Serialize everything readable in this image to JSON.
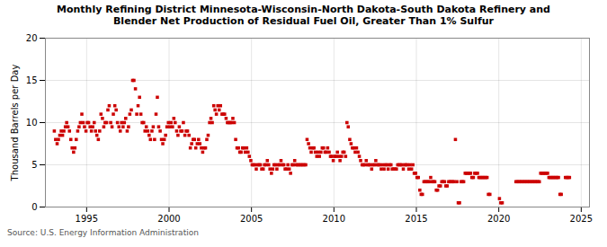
{
  "chart_data": {
    "type": "scatter",
    "title": "Monthly Refining District Minnesota-Wisconsin-North Dakota-South Dakota Refinery and\nBlender Net Production of Residual Fuel Oil, Greater Than 1% Sulfur",
    "ylabel": "Thousand Barrels per Day",
    "source": "Source: U.S. Energy Information Administration",
    "color": "#cc0000",
    "marker": "square",
    "grid": true,
    "xlim": [
      1992.5,
      2025.5
    ],
    "ylim": [
      0,
      20
    ],
    "xticks": [
      1995,
      2000,
      2005,
      2010,
      2015,
      2020,
      2025
    ],
    "yticks": [
      0,
      5,
      10,
      15,
      20
    ],
    "x": [
      1993.04,
      1993.12,
      1993.21,
      1993.29,
      1993.37,
      1993.46,
      1993.54,
      1993.62,
      1993.71,
      1993.79,
      1993.87,
      1993.96,
      1994.04,
      1994.12,
      1994.21,
      1994.29,
      1994.37,
      1994.46,
      1994.54,
      1994.62,
      1994.71,
      1994.79,
      1994.87,
      1994.96,
      1995.04,
      1995.12,
      1995.21,
      1995.29,
      1995.37,
      1995.46,
      1995.54,
      1995.62,
      1995.71,
      1995.79,
      1995.87,
      1995.96,
      1996.04,
      1996.12,
      1996.21,
      1996.29,
      1996.37,
      1996.46,
      1996.54,
      1996.62,
      1996.71,
      1996.79,
      1996.87,
      1996.96,
      1997.04,
      1997.12,
      1997.21,
      1997.29,
      1997.37,
      1997.46,
      1997.54,
      1997.62,
      1997.71,
      1997.79,
      1997.87,
      1997.96,
      1998.04,
      1998.12,
      1998.21,
      1998.29,
      1998.37,
      1998.46,
      1998.54,
      1998.62,
      1998.71,
      1998.79,
      1998.87,
      1998.96,
      1999.04,
      1999.12,
      1999.21,
      1999.29,
      1999.37,
      1999.46,
      1999.54,
      1999.62,
      1999.71,
      1999.79,
      1999.87,
      1999.96,
      2000.04,
      2000.12,
      2000.21,
      2000.29,
      2000.37,
      2000.46,
      2000.54,
      2000.62,
      2000.71,
      2000.79,
      2000.87,
      2000.96,
      2001.04,
      2001.12,
      2001.21,
      2001.29,
      2001.37,
      2001.46,
      2001.54,
      2001.62,
      2001.71,
      2001.79,
      2001.87,
      2001.96,
      2002.04,
      2002.12,
      2002.21,
      2002.29,
      2002.37,
      2002.46,
      2002.54,
      2002.62,
      2002.71,
      2002.79,
      2002.87,
      2002.96,
      2003.04,
      2003.12,
      2003.21,
      2003.29,
      2003.37,
      2003.46,
      2003.54,
      2003.62,
      2003.71,
      2003.79,
      2003.87,
      2003.96,
      2004.04,
      2004.12,
      2004.21,
      2004.29,
      2004.37,
      2004.46,
      2004.54,
      2004.62,
      2004.71,
      2004.79,
      2004.87,
      2004.96,
      2005.04,
      2005.12,
      2005.21,
      2005.29,
      2005.37,
      2005.46,
      2005.54,
      2005.62,
      2005.71,
      2005.79,
      2005.87,
      2005.96,
      2006.04,
      2006.12,
      2006.21,
      2006.29,
      2006.37,
      2006.46,
      2006.54,
      2006.62,
      2006.71,
      2006.79,
      2006.87,
      2006.96,
      2007.04,
      2007.12,
      2007.21,
      2007.29,
      2007.37,
      2007.46,
      2007.54,
      2007.62,
      2007.71,
      2007.79,
      2007.87,
      2007.96,
      2008.04,
      2008.12,
      2008.21,
      2008.29,
      2008.37,
      2008.46,
      2008.54,
      2008.62,
      2008.71,
      2008.79,
      2008.87,
      2008.96,
      2009.04,
      2009.12,
      2009.21,
      2009.29,
      2009.37,
      2009.46,
      2009.54,
      2009.62,
      2009.71,
      2009.79,
      2009.87,
      2009.96,
      2010.04,
      2010.12,
      2010.21,
      2010.29,
      2010.37,
      2010.46,
      2010.54,
      2010.62,
      2010.71,
      2010.79,
      2010.87,
      2010.96,
      2011.04,
      2011.12,
      2011.21,
      2011.29,
      2011.37,
      2011.46,
      2011.54,
      2011.62,
      2011.71,
      2011.79,
      2011.87,
      2011.96,
      2012.04,
      2012.12,
      2012.21,
      2012.29,
      2012.37,
      2012.46,
      2012.54,
      2012.62,
      2012.71,
      2012.79,
      2012.87,
      2012.96,
      2013.04,
      2013.12,
      2013.21,
      2013.29,
      2013.37,
      2013.46,
      2013.54,
      2013.62,
      2013.71,
      2013.79,
      2013.87,
      2013.96,
      2014.04,
      2014.12,
      2014.21,
      2014.29,
      2014.37,
      2014.46,
      2014.54,
      2014.62,
      2014.71,
      2014.79,
      2014.87,
      2014.96,
      2015.04,
      2015.12,
      2015.21,
      2015.29,
      2015.37,
      2015.46,
      2015.54,
      2015.62,
      2015.71,
      2015.79,
      2015.87,
      2015.96,
      2016.04,
      2016.12,
      2016.21,
      2016.29,
      2016.37,
      2016.46,
      2016.54,
      2016.62,
      2016.71,
      2016.79,
      2016.87,
      2016.96,
      2017.04,
      2017.12,
      2017.21,
      2017.29,
      2017.37,
      2017.46,
      2017.54,
      2017.62,
      2017.71,
      2017.79,
      2017.87,
      2017.96,
      2018.04,
      2018.12,
      2018.21,
      2018.29,
      2018.37,
      2018.46,
      2018.54,
      2018.62,
      2018.71,
      2018.79,
      2018.87,
      2018.96,
      2019.04,
      2019.12,
      2019.21,
      2019.29,
      2019.37,
      2019.46,
      2020.04,
      2020.12,
      2020.21,
      2021.04,
      2021.12,
      2021.21,
      2021.29,
      2021.37,
      2021.46,
      2021.54,
      2021.62,
      2021.71,
      2021.79,
      2021.87,
      2021.96,
      2022.04,
      2022.12,
      2022.21,
      2022.29,
      2022.37,
      2022.46,
      2022.54,
      2022.62,
      2022.71,
      2022.79,
      2022.87,
      2022.96,
      2023.04,
      2023.12,
      2023.21,
      2023.29,
      2023.37,
      2023.46,
      2023.54,
      2023.62,
      2023.71,
      2023.79,
      2024.04,
      2024.12,
      2024.21,
      2024.29
    ],
    "values": [
      9.0,
      8.0,
      7.5,
      8.0,
      8.5,
      9.0,
      8.5,
      9.0,
      9.5,
      10.0,
      9.5,
      9.0,
      8.0,
      7.0,
      6.5,
      7.0,
      8.0,
      9.0,
      9.5,
      10.0,
      11.0,
      10.0,
      9.5,
      9.0,
      10.0,
      10.0,
      9.5,
      9.0,
      9.5,
      10.0,
      9.0,
      8.5,
      8.0,
      9.0,
      11.0,
      10.5,
      9.5,
      10.0,
      10.0,
      11.5,
      12.0,
      10.0,
      9.5,
      11.0,
      12.0,
      11.5,
      10.0,
      9.5,
      9.0,
      10.0,
      9.5,
      10.0,
      10.5,
      9.0,
      9.5,
      11.0,
      11.5,
      15.0,
      15.0,
      14.0,
      11.0,
      12.0,
      13.0,
      11.0,
      10.0,
      10.0,
      9.0,
      9.5,
      9.0,
      8.5,
      8.0,
      9.0,
      9.5,
      8.0,
      11.0,
      13.0,
      9.5,
      9.0,
      8.0,
      7.5,
      8.0,
      8.5,
      9.5,
      10.0,
      9.5,
      10.0,
      9.5,
      10.5,
      10.0,
      9.0,
      8.5,
      9.5,
      9.0,
      9.0,
      10.0,
      8.5,
      9.0,
      9.0,
      8.5,
      7.0,
      7.5,
      8.0,
      8.0,
      7.0,
      7.5,
      8.0,
      7.5,
      7.0,
      6.5,
      7.0,
      7.0,
      8.0,
      8.5,
      10.0,
      10.5,
      10.0,
      12.0,
      11.5,
      11.0,
      12.0,
      11.5,
      12.0,
      11.0,
      11.0,
      11.0,
      10.5,
      10.0,
      10.0,
      10.0,
      10.0,
      10.5,
      10.0,
      8.0,
      7.0,
      7.0,
      6.5,
      6.5,
      7.0,
      7.0,
      6.5,
      7.0,
      6.5,
      6.0,
      5.5,
      5.0,
      5.0,
      5.0,
      4.5,
      5.0,
      5.0,
      5.0,
      4.5,
      4.5,
      5.0,
      5.0,
      5.5,
      5.0,
      4.5,
      4.0,
      4.5,
      5.0,
      5.0,
      4.5,
      5.0,
      5.0,
      5.5,
      5.0,
      5.0,
      4.5,
      4.5,
      5.0,
      4.5,
      4.0,
      5.0,
      5.0,
      5.5,
      5.0,
      5.0,
      5.0,
      5.0,
      5.0,
      5.0,
      5.0,
      5.0,
      8.0,
      7.5,
      7.0,
      6.5,
      7.0,
      7.0,
      6.5,
      6.0,
      6.5,
      6.0,
      6.5,
      7.0,
      7.0,
      6.5,
      6.5,
      7.0,
      6.5,
      6.0,
      6.0,
      5.5,
      6.0,
      6.0,
      6.5,
      6.0,
      5.5,
      6.0,
      6.5,
      6.5,
      6.0,
      10.0,
      9.5,
      8.0,
      7.5,
      7.0,
      7.0,
      6.5,
      7.0,
      6.5,
      6.0,
      5.5,
      5.0,
      5.0,
      5.0,
      5.5,
      5.0,
      5.0,
      5.0,
      4.5,
      5.0,
      5.0,
      5.5,
      5.0,
      5.0,
      5.0,
      4.5,
      5.0,
      4.5,
      5.0,
      5.0,
      4.5,
      5.0,
      5.0,
      4.5,
      4.5,
      4.5,
      4.5,
      5.0,
      5.0,
      5.0,
      5.0,
      4.5,
      5.0,
      5.0,
      5.0,
      4.5,
      5.0,
      4.5,
      5.0,
      4.0,
      4.0,
      3.5,
      3.5,
      2.0,
      1.5,
      1.5,
      3.0,
      3.0,
      3.0,
      3.0,
      3.0,
      3.5,
      3.0,
      3.0,
      3.0,
      2.0,
      2.0,
      2.5,
      2.5,
      3.0,
      3.0,
      3.0,
      2.5,
      2.5,
      3.0,
      3.0,
      3.0,
      3.0,
      3.0,
      8.0,
      3.0,
      0.5,
      0.5,
      3.0,
      3.0,
      3.0,
      4.0,
      4.0,
      4.0,
      4.0,
      4.0,
      3.5,
      3.5,
      4.0,
      4.0,
      4.0,
      3.5,
      3.5,
      3.5,
      3.5,
      3.5,
      3.5,
      3.5,
      1.5,
      1.5,
      1.0,
      0.5,
      0.5,
      3.0,
      3.0,
      3.0,
      3.0,
      3.0,
      3.0,
      3.0,
      3.0,
      3.0,
      3.0,
      3.0,
      3.0,
      3.0,
      3.0,
      3.0,
      3.0,
      3.0,
      3.0,
      4.0,
      4.0,
      4.0,
      4.0,
      4.0,
      4.0,
      3.5,
      3.5,
      3.5,
      3.5,
      3.5,
      3.5,
      3.5,
      3.5,
      1.5,
      1.5,
      3.5,
      3.5,
      3.5,
      3.5
    ]
  }
}
